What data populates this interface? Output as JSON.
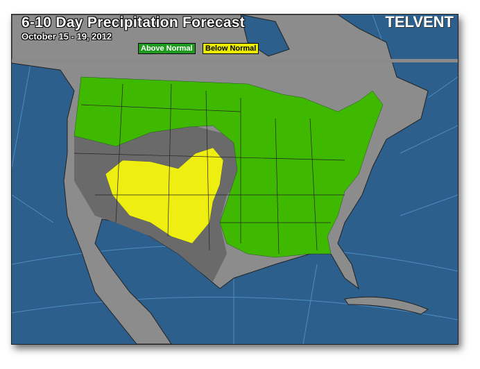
{
  "header": {
    "title": "6-10 Day Precipitation Forecast",
    "date_range": "October 15 - 19, 2012",
    "logo": "TELVENT"
  },
  "legend": [
    {
      "label": "Above Normal",
      "color": "#2aa61a"
    },
    {
      "label": "Below Normal",
      "color": "#f0f000"
    }
  ],
  "colors": {
    "ocean": "#2c5f8c",
    "land": "#8c8c8c",
    "near_normal": "#6a6a6a",
    "above": "#3fb800",
    "below": "#eeee10"
  }
}
